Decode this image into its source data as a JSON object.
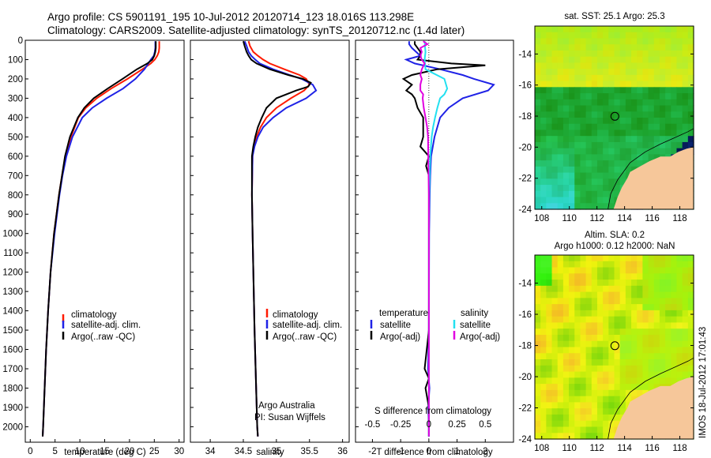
{
  "header": {
    "line1": "Argo profile: CS 5901191_195 10-Jul-2012 20120714_123 18.016S 113.298E",
    "line2": "Climatology: CARS2009. Satellite-adjusted climatology: synTS_20120712.nc (1.4d later)"
  },
  "colors": {
    "climatology": "#ff1a00",
    "satellite": "#1f22e6",
    "argo": "#000000",
    "satellite_salinity": "#23e0f0",
    "argo_salinity": "#e000e0",
    "land": "#f6c79a"
  },
  "chart_data": [
    {
      "type": "line",
      "name": "temperature-profile",
      "xlabel": "temperature (deg C)",
      "xlim": [
        -1,
        31
      ],
      "ylim": [
        2080,
        0
      ],
      "xticks": [
        0,
        5,
        10,
        15,
        20,
        25,
        30
      ],
      "yticks": [
        0,
        100,
        200,
        300,
        400,
        500,
        600,
        700,
        800,
        900,
        1000,
        1100,
        1200,
        1300,
        1400,
        1500,
        1600,
        1700,
        1800,
        1900,
        2000
      ],
      "legend": [
        "climatology",
        "satellite-adj. clim.",
        "Argo(..raw -QC)"
      ],
      "series": [
        {
          "name": "climatology",
          "color": "#ff1a00",
          "depth": [
            5,
            20,
            40,
            60,
            80,
            100,
            120,
            150,
            200,
            250,
            300,
            350,
            400,
            500,
            600,
            700,
            800,
            1000,
            1200,
            1400,
            1600,
            1800,
            2000,
            2050
          ],
          "values": [
            26.0,
            26.0,
            26.0,
            25.9,
            25.6,
            25.1,
            24.3,
            22.6,
            19.6,
            16.3,
            13.4,
            11.2,
            9.7,
            8.2,
            7.1,
            6.4,
            5.8,
            4.8,
            4.1,
            3.6,
            3.2,
            2.9,
            2.6,
            2.5
          ]
        },
        {
          "name": "satellite-adj. clim.",
          "color": "#1f22e6",
          "depth": [
            5,
            20,
            40,
            60,
            80,
            100,
            120,
            150,
            200,
            250,
            300,
            350,
            400,
            500,
            600,
            700,
            800,
            1000,
            1200,
            1400,
            1600,
            1800,
            2000,
            2050
          ],
          "values": [
            25.2,
            25.2,
            25.2,
            25.1,
            24.9,
            24.3,
            23.8,
            23.0,
            21.2,
            18.7,
            15.4,
            12.5,
            10.5,
            8.5,
            7.3,
            6.5,
            5.9,
            4.9,
            4.1,
            3.6,
            3.2,
            2.9,
            2.6,
            2.5
          ]
        },
        {
          "name": "Argo(..raw -QC)",
          "color": "#000000",
          "depth": [
            5,
            20,
            40,
            60,
            80,
            100,
            120,
            150,
            200,
            250,
            300,
            350,
            400,
            500,
            600,
            700,
            800,
            1000,
            1200,
            1400,
            1600,
            1800,
            2000,
            2050
          ],
          "values": [
            25.3,
            25.3,
            25.3,
            25.2,
            25.0,
            24.6,
            23.6,
            21.5,
            18.6,
            15.6,
            12.8,
            10.9,
            9.6,
            8.0,
            7.0,
            6.4,
            5.8,
            4.8,
            4.1,
            3.6,
            3.2,
            2.9,
            2.6,
            2.5
          ]
        }
      ]
    },
    {
      "type": "line",
      "name": "salinity-profile",
      "xlabel": "salinity",
      "xlim": [
        33.7,
        36.1
      ],
      "ylim": [
        2080,
        0
      ],
      "xticks": [
        34,
        34.5,
        35,
        35.5,
        36
      ],
      "xticklabels": [
        "34",
        "34.5",
        "35",
        "35.5",
        "36"
      ],
      "legend": [
        "climatology",
        "satellite-adj. clim.",
        "Argo(..raw -QC)"
      ],
      "annotations": [
        "Argo Australia",
        "PI: Susan Wijffels"
      ],
      "series": [
        {
          "name": "climatology",
          "color": "#ff1a00",
          "depth": [
            5,
            30,
            60,
            80,
            100,
            120,
            150,
            180,
            200,
            230,
            260,
            300,
            350,
            400,
            450,
            500,
            550,
            600,
            800,
            1000,
            1500,
            2000,
            2050
          ],
          "values": [
            34.58,
            34.6,
            34.65,
            34.72,
            34.8,
            34.9,
            35.12,
            35.35,
            35.45,
            35.5,
            35.42,
            35.22,
            35.0,
            34.85,
            34.76,
            34.7,
            34.66,
            34.64,
            34.63,
            34.64,
            34.67,
            34.71,
            34.72
          ]
        },
        {
          "name": "satellite-adj. clim.",
          "color": "#1f22e6",
          "depth": [
            5,
            30,
            60,
            80,
            100,
            120,
            150,
            180,
            200,
            230,
            260,
            300,
            350,
            400,
            450,
            500,
            550,
            600,
            800,
            1000,
            1500,
            2000,
            2050
          ],
          "values": [
            34.52,
            34.55,
            34.58,
            34.62,
            34.68,
            34.75,
            34.95,
            35.2,
            35.38,
            35.55,
            35.6,
            35.45,
            35.15,
            34.95,
            34.8,
            34.72,
            34.67,
            34.64,
            34.63,
            34.64,
            34.67,
            34.71,
            34.72
          ]
        },
        {
          "name": "Argo(..raw -QC)",
          "color": "#000000",
          "depth": [
            5,
            30,
            60,
            80,
            100,
            120,
            150,
            180,
            200,
            220,
            240,
            260,
            300,
            350,
            400,
            450,
            500,
            550,
            600,
            800,
            1000,
            1500,
            2000,
            2050
          ],
          "values": [
            34.5,
            34.52,
            34.55,
            34.58,
            34.62,
            34.7,
            34.9,
            35.18,
            35.4,
            35.52,
            35.48,
            35.3,
            35.0,
            34.85,
            34.78,
            34.72,
            34.68,
            34.65,
            34.63,
            34.63,
            34.64,
            34.67,
            34.71,
            34.72
          ]
        }
      ]
    },
    {
      "type": "line",
      "name": "difference-profile",
      "xlabel": "T difference from climatology",
      "xlabel_top": "S difference from climatology",
      "xlim": [
        -2.6,
        3.0
      ],
      "ylim": [
        2080,
        0
      ],
      "xticks": [
        -2,
        -1,
        0,
        1,
        2
      ],
      "s_ticks": [
        -0.5,
        -0.25,
        0,
        0.25,
        0.5
      ],
      "s_ticklabels": [
        "-0.5",
        "-0.25",
        "0",
        "0.25",
        "0.5"
      ],
      "legend_headers": [
        "temperature",
        "salinity"
      ],
      "legend": [
        "satellite",
        "Argo(-adj)",
        "satellite",
        "Argo(-adj)"
      ],
      "series": [
        {
          "name": "satellite",
          "color": "#1f22e6",
          "depth": [
            5,
            20,
            40,
            60,
            80,
            100,
            120,
            150,
            180,
            200,
            230,
            260,
            300,
            350,
            400,
            500,
            600,
            700,
            800,
            1000,
            1500,
            1700,
            1800,
            1900,
            2000,
            2050
          ],
          "values": [
            -0.7,
            -0.7,
            -0.6,
            -0.45,
            -0.3,
            -0.8,
            -0.5,
            0.4,
            1.2,
            1.6,
            2.3,
            2.1,
            1.2,
            0.7,
            0.4,
            0.2,
            0.08,
            0.05,
            0.03,
            0.01,
            0.0,
            -0.03,
            0.02,
            -0.02,
            0.0,
            0.0
          ]
        },
        {
          "name": "Argo(-adj)",
          "color": "#000000",
          "depth": [
            5,
            20,
            40,
            60,
            80,
            100,
            120,
            130,
            150,
            180,
            200,
            230,
            260,
            280,
            300,
            350,
            400,
            450,
            500,
            550,
            600,
            650,
            700,
            800,
            1000,
            1500,
            1700,
            1750,
            1800,
            1900,
            2000,
            2050
          ],
          "values": [
            -0.5,
            -0.5,
            -0.4,
            -0.3,
            -0.3,
            -0.4,
            0.8,
            2.0,
            0.3,
            -0.6,
            -0.9,
            -0.6,
            -0.8,
            -0.6,
            -0.5,
            -0.4,
            -0.2,
            -0.2,
            -0.2,
            -0.3,
            0.0,
            -0.1,
            0.0,
            0.0,
            0.0,
            0.0,
            -0.15,
            0.0,
            -0.12,
            0.0,
            0.0,
            0.0
          ]
        },
        {
          "name": "satellite",
          "color": "#23e0f0",
          "depth": [
            5,
            30,
            60,
            100,
            150,
            200,
            250,
            280,
            300,
            350,
            400,
            450,
            500,
            600,
            700,
            800,
            1000,
            1500,
            2000,
            2050
          ],
          "values": [
            -0.15,
            -0.14,
            -0.12,
            -0.15,
            -0.12,
            0.55,
            0.65,
            0.55,
            0.4,
            0.3,
            0.22,
            0.15,
            0.1,
            0.05,
            0.03,
            0.01,
            0.0,
            0.0,
            0.0,
            0.0
          ]
        },
        {
          "name": "Argo(-adj)",
          "color": "#e000e0",
          "depth": [
            5,
            20,
            40,
            60,
            80,
            100,
            120,
            150,
            180,
            200,
            230,
            260,
            280,
            300,
            350,
            400,
            450,
            500,
            600,
            700,
            800,
            1000,
            1500,
            2000,
            2050
          ],
          "values": [
            -0.2,
            -0.05,
            -0.3,
            -0.25,
            -0.3,
            -0.25,
            -0.15,
            -0.25,
            -0.3,
            -0.25,
            -0.3,
            -0.3,
            -0.2,
            -0.22,
            -0.18,
            -0.12,
            -0.06,
            -0.03,
            -0.02,
            -0.01,
            0.0,
            0.0,
            0.0,
            0.0,
            0.0
          ]
        }
      ]
    },
    {
      "type": "heatmap",
      "name": "sst-map",
      "title": "sat. SST: 25.1  Argo: 25.3",
      "xlim": [
        107.5,
        119.0
      ],
      "ylim": [
        -24,
        -12.2
      ],
      "xticks": [
        108,
        110,
        112,
        114,
        116,
        118
      ],
      "yticks": [
        -14,
        -16,
        -18,
        -20,
        -22,
        -24
      ],
      "marker": {
        "lon": 113.298,
        "lat": -18.016
      }
    },
    {
      "type": "heatmap",
      "name": "sla-map",
      "title": "Altim. SLA: 0.2",
      "subtitle": "Argo h1000: 0.12 h2000: NaN",
      "xlim": [
        107.5,
        119.0
      ],
      "ylim": [
        -24,
        -12.2
      ],
      "xticks": [
        108,
        110,
        112,
        114,
        116,
        118
      ],
      "yticks": [
        -14,
        -16,
        -18,
        -20,
        -22,
        -24
      ],
      "marker": {
        "lon": 113.298,
        "lat": -18.016
      }
    }
  ],
  "footer": {
    "stamp": "IMOS 18-Jul-2012 17:01:43"
  }
}
